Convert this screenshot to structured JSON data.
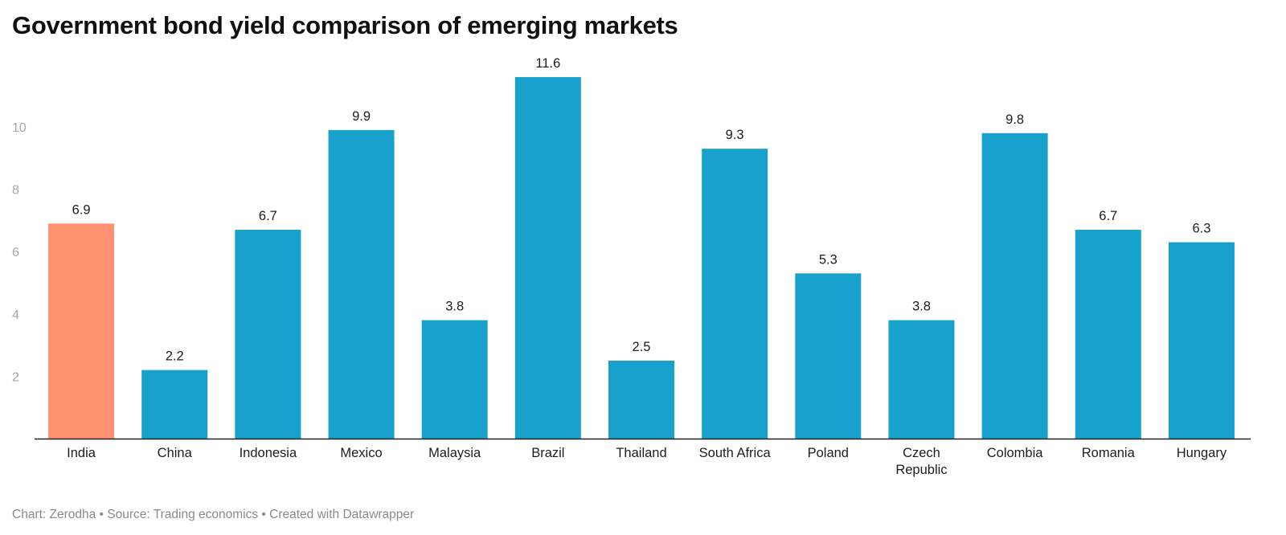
{
  "chart_data": {
    "type": "bar",
    "title": "Government bond yield comparison of emerging markets",
    "categories": [
      "India",
      "China",
      "Indonesia",
      "Mexico",
      "Malaysia",
      "Brazil",
      "Thailand",
      "South Africa",
      "Poland",
      "Czech Republic",
      "Colombia",
      "Romania",
      "Hungary"
    ],
    "category_lines": [
      [
        "India"
      ],
      [
        "China"
      ],
      [
        "Indonesia"
      ],
      [
        "Mexico"
      ],
      [
        "Malaysia"
      ],
      [
        "Brazil"
      ],
      [
        "Thailand"
      ],
      [
        "South Africa"
      ],
      [
        "Poland"
      ],
      [
        "Czech",
        "Republic"
      ],
      [
        "Colombia"
      ],
      [
        "Romania"
      ],
      [
        "Hungary"
      ]
    ],
    "values": [
      6.9,
      2.2,
      6.7,
      9.9,
      3.8,
      11.6,
      2.5,
      9.3,
      5.3,
      3.8,
      9.8,
      6.7,
      6.3
    ],
    "value_labels": [
      "6.9",
      "2.2",
      "6.7",
      "9.9",
      "3.8",
      "11.6",
      "2.5",
      "9.3",
      "5.3",
      "3.8",
      "9.8",
      "6.7",
      "6.3"
    ],
    "highlight": "India",
    "colors": {
      "default": "#18a1cd",
      "highlight": "#ff9270"
    },
    "yticks": [
      2,
      4,
      6,
      8,
      10
    ],
    "ylim": [
      0,
      12
    ],
    "xlabel": "",
    "ylabel": "",
    "grid": false,
    "legend": "none"
  },
  "footer": "Chart: Zerodha • Source: Trading economics • Created with Datawrapper"
}
